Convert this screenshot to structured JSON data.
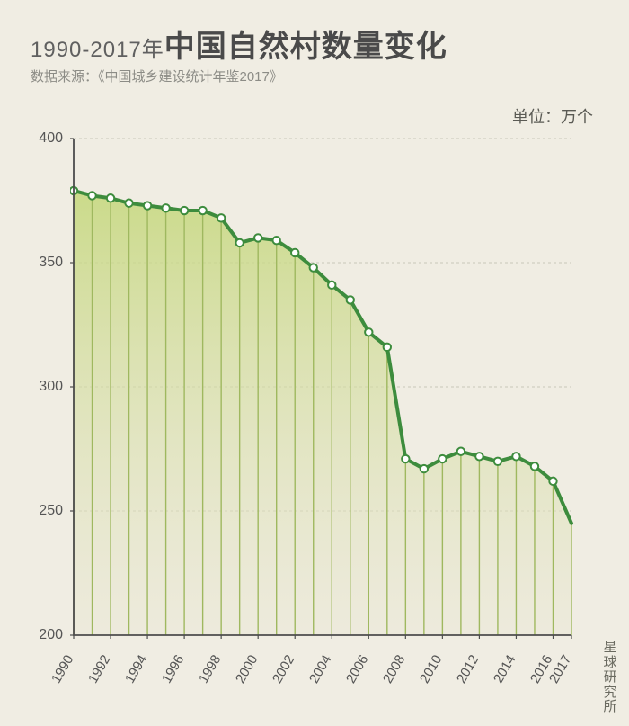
{
  "title_prefix": "1990-2017年",
  "title_main": "中国自然村数量变化",
  "subtitle": "数据来源：《中国城乡建设统计年鉴2017》",
  "unit_label": "单位：万个",
  "credit": "星球研究所",
  "chart": {
    "type": "area",
    "background_color": "#f0ede3",
    "axis_color": "#4d4d4d",
    "axis_width": 1.8,
    "grid_color": "#c9c6ba",
    "grid_width": 1,
    "grid_dash": "3 3",
    "line_color": "#3d8c3d",
    "line_width": 4,
    "drop_line_color": "#9fb85f",
    "drop_line_width": 1.4,
    "marker_fill": "#ffffff",
    "marker_stroke": "#3d8c3d",
    "marker_stroke_width": 2,
    "marker_radius": 4.2,
    "area_top_color": "#c4d77a",
    "area_top_opacity": 0.85,
    "area_bottom_color": "#e9e6d2",
    "area_bottom_opacity": 0.4,
    "ylim": [
      200,
      400
    ],
    "yticks": [
      200,
      250,
      300,
      350,
      400
    ],
    "xlim": [
      1990,
      2017
    ],
    "xticks_major": [
      1990,
      1992,
      1994,
      1996,
      1998,
      2000,
      2002,
      2004,
      2006,
      2008,
      2010,
      2012,
      2014,
      2016,
      2017
    ],
    "label_fontsize": 16,
    "title_fontsize_prefix": 24,
    "title_fontsize_main": 34,
    "years": [
      1990,
      1991,
      1992,
      1993,
      1994,
      1995,
      1996,
      1997,
      1998,
      1999,
      2000,
      2001,
      2002,
      2003,
      2004,
      2005,
      2006,
      2007,
      2008,
      2009,
      2010,
      2011,
      2012,
      2013,
      2014,
      2015,
      2016,
      2017
    ],
    "values": [
      379,
      377,
      376,
      374,
      373,
      372,
      371,
      371,
      368,
      358,
      360,
      359,
      354,
      348,
      341,
      335,
      322,
      316,
      271,
      267,
      271,
      274,
      272,
      270,
      272,
      268,
      262,
      245
    ]
  }
}
